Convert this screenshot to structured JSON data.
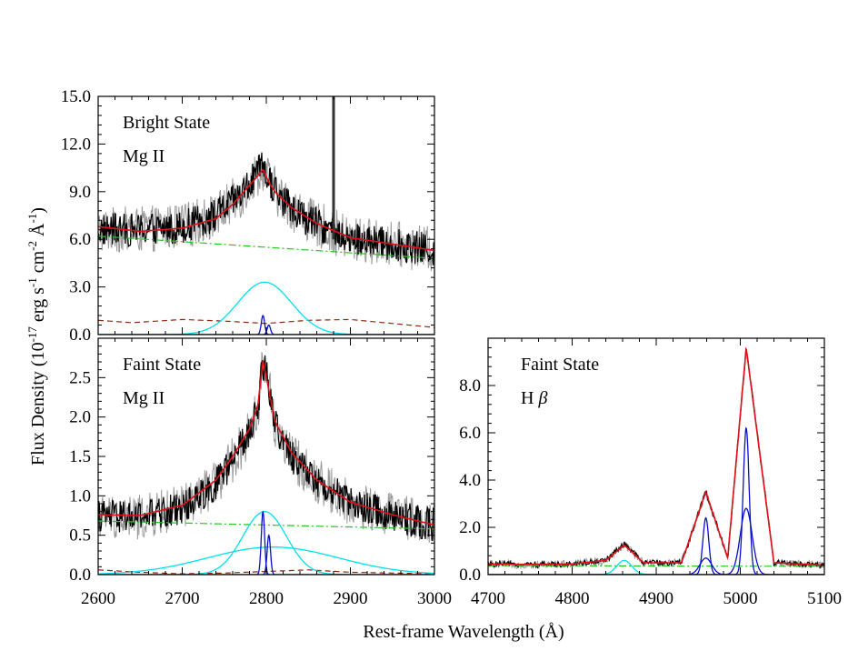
{
  "figure": {
    "ylabel_parts": [
      "Flux Density (10",
      "-17",
      " erg s",
      "-1",
      " cm",
      "-2",
      " Å",
      "-1",
      ")"
    ],
    "xlabel": "Rest-frame Wavelength (Å)"
  },
  "colors": {
    "data": "#000000",
    "data_err": "#9a9a9a",
    "total_fit": "#e0101a",
    "power_law": "#22c81e",
    "fe_template": "#8b2a10",
    "broad": "#00e0ee",
    "narrow": "#0a10c8"
  },
  "chart_data": [
    {
      "type": "line",
      "panel": "top-left",
      "annotations": [
        "Bright State",
        "Mg II"
      ],
      "xlim": [
        2600,
        3000
      ],
      "ylim": [
        0,
        15
      ],
      "yticks": [
        0,
        3,
        6,
        9,
        12,
        15
      ],
      "ytick_labels": [
        "0.0",
        "3.0",
        "6.0",
        "9.0",
        "12.0",
        "15.0"
      ],
      "xtick_labels_shown": false,
      "spike_at": 2880,
      "series": [
        {
          "role": "data",
          "x": [
            2600,
            2650,
            2700,
            2740,
            2770,
            2790,
            2796,
            2802,
            2820,
            2850,
            2900,
            2950,
            3000
          ],
          "y": [
            6.6,
            6.6,
            6.8,
            7.5,
            8.8,
            10.2,
            10.5,
            9.8,
            8.4,
            7.2,
            6.0,
            5.7,
            5.3
          ]
        },
        {
          "role": "total_fit",
          "x": [
            2600,
            2650,
            2700,
            2740,
            2760,
            2780,
            2790,
            2796,
            2802,
            2810,
            2830,
            2860,
            2900,
            2950,
            3000
          ],
          "y": [
            6.8,
            6.5,
            6.7,
            7.3,
            8.2,
            9.4,
            10.0,
            10.4,
            9.7,
            9.0,
            8.0,
            7.0,
            6.1,
            5.7,
            5.3
          ]
        },
        {
          "role": "power_law",
          "x": [
            2600,
            3000
          ],
          "y": [
            6.2,
            4.8
          ]
        },
        {
          "role": "fe_template",
          "x": [
            2600,
            2640,
            2700,
            2750,
            2800,
            2850,
            2900,
            2950,
            3000
          ],
          "y": [
            0.9,
            0.75,
            0.95,
            0.85,
            0.7,
            0.9,
            0.95,
            0.7,
            0.45
          ]
        },
        {
          "role": "broad",
          "center": 2798,
          "amp": 3.3,
          "sigma": 32
        },
        {
          "role": "narrow",
          "center": 2796,
          "amp": 1.2,
          "sigma": 2
        },
        {
          "role": "narrow",
          "center": 2803,
          "amp": 0.6,
          "sigma": 2
        }
      ]
    },
    {
      "type": "line",
      "panel": "bottom-left",
      "annotations": [
        "Faint State",
        "Mg II"
      ],
      "xlim": [
        2600,
        3000
      ],
      "ylim": [
        0,
        3
      ],
      "yticks": [
        0,
        0.5,
        1,
        1.5,
        2,
        2.5
      ],
      "ytick_labels": [
        "0.0",
        "0.5",
        "1.0",
        "1.5",
        "2.0",
        "2.5"
      ],
      "xticks": [
        2600,
        2700,
        2800,
        2900,
        3000
      ],
      "xtick_labels": [
        "2600",
        "2700",
        "2800",
        "2900",
        "3000"
      ],
      "series": [
        {
          "role": "data",
          "x": [
            2600,
            2650,
            2700,
            2740,
            2760,
            2780,
            2790,
            2796,
            2802,
            2810,
            2830,
            2860,
            2900,
            2950,
            3000
          ],
          "y": [
            0.75,
            0.72,
            0.85,
            1.15,
            1.45,
            1.8,
            2.1,
            2.7,
            2.5,
            1.9,
            1.5,
            1.2,
            0.9,
            0.75,
            0.63
          ]
        },
        {
          "role": "total_fit",
          "x": [
            2600,
            2650,
            2700,
            2740,
            2760,
            2780,
            2790,
            2796,
            2802,
            2810,
            2830,
            2860,
            2900,
            2950,
            3000
          ],
          "y": [
            0.76,
            0.75,
            0.88,
            1.2,
            1.5,
            1.85,
            2.15,
            2.72,
            2.4,
            1.95,
            1.55,
            1.2,
            0.92,
            0.76,
            0.63
          ]
        },
        {
          "role": "power_law",
          "x": [
            2600,
            3000
          ],
          "y": [
            0.68,
            0.58
          ]
        },
        {
          "role": "fe_template",
          "x": [
            2600,
            2650,
            2700,
            2750,
            2800,
            2850,
            2900,
            2950,
            3000
          ],
          "y": [
            0.06,
            0.03,
            0.01,
            0.02,
            0.04,
            0.06,
            0.03,
            0.02,
            0.01
          ]
        },
        {
          "role": "broad",
          "center": 2798,
          "amp": 0.8,
          "sigma": 26
        },
        {
          "role": "broad",
          "center": 2808,
          "amp": 0.35,
          "sigma": 78
        },
        {
          "role": "narrow",
          "center": 2796,
          "amp": 0.8,
          "sigma": 2
        },
        {
          "role": "narrow",
          "center": 2803,
          "amp": 0.5,
          "sigma": 2
        }
      ]
    },
    {
      "type": "line",
      "panel": "bottom-right",
      "annotations": [
        "Faint State",
        "H β"
      ],
      "xlim": [
        4700,
        5100
      ],
      "ylim": [
        0,
        10
      ],
      "yticks": [
        0,
        2,
        4,
        6,
        8
      ],
      "ytick_labels": [
        "0.0",
        "2.0",
        "4.0",
        "6.0",
        "8.0"
      ],
      "xticks": [
        4700,
        4800,
        4900,
        5000,
        5100
      ],
      "xtick_labels": [
        "4700",
        "4800",
        "4900",
        "5000",
        "5100"
      ],
      "series": [
        {
          "role": "data",
          "x": [
            4700,
            4750,
            4800,
            4840,
            4862,
            4885,
            4930,
            4959,
            4985,
            5007,
            5040,
            5100
          ],
          "y": [
            0.45,
            0.42,
            0.45,
            0.6,
            1.3,
            0.5,
            0.5,
            3.5,
            0.7,
            9.6,
            0.5,
            0.4
          ]
        },
        {
          "role": "total_fit",
          "x": [
            4700,
            4750,
            4800,
            4840,
            4862,
            4885,
            4930,
            4959,
            4985,
            5007,
            5040,
            5100
          ],
          "y": [
            0.45,
            0.43,
            0.45,
            0.6,
            1.25,
            0.5,
            0.5,
            3.5,
            0.7,
            9.6,
            0.5,
            0.4
          ]
        },
        {
          "role": "power_law",
          "x": [
            4700,
            5100
          ],
          "y": [
            0.38,
            0.35
          ]
        },
        {
          "role": "broad",
          "center": 4862,
          "amp": 0.6,
          "sigma": 9
        },
        {
          "role": "narrow",
          "center": 4959,
          "amp": 2.4,
          "sigma": 3.5
        },
        {
          "role": "narrow",
          "center": 4959,
          "amp": 0.7,
          "sigma": 7
        },
        {
          "role": "narrow",
          "center": 5007,
          "amp": 6.2,
          "sigma": 3.5
        },
        {
          "role": "narrow",
          "center": 5007,
          "amp": 2.8,
          "sigma": 7
        }
      ]
    }
  ]
}
